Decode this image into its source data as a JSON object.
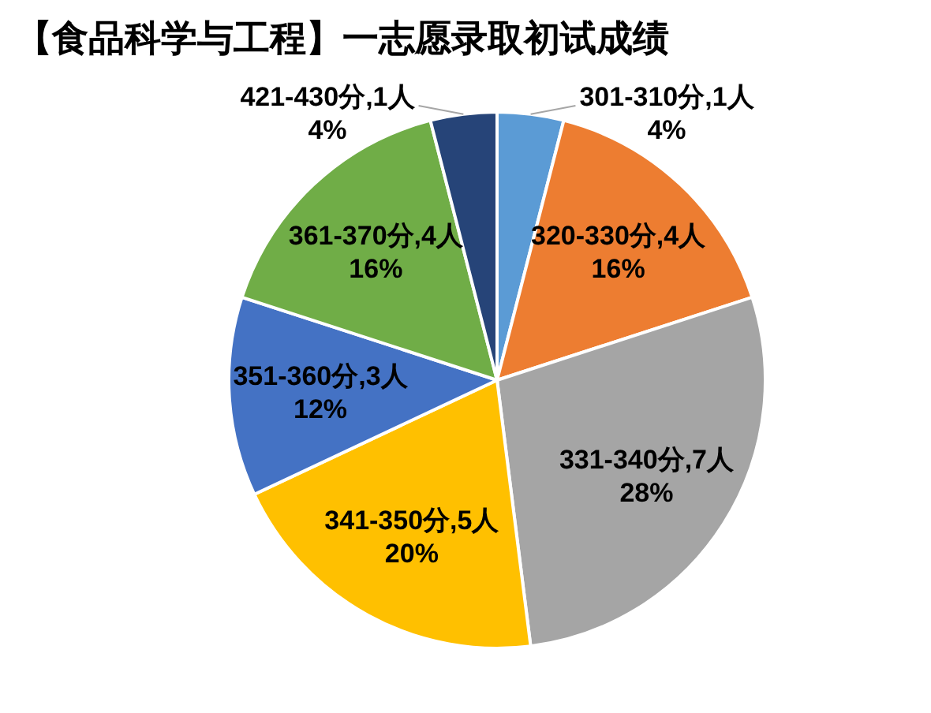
{
  "chart_data": {
    "type": "pie",
    "title": "【食品科学与工程】一志愿录取初试成绩",
    "categories": [
      "301-310分,1人",
      "320-330分,4人",
      "331-340分,7人",
      "341-350分,5人",
      "351-360分,3人",
      "361-370分,4人",
      "421-430分,1人"
    ],
    "values": [
      4,
      16,
      28,
      20,
      12,
      16,
      4
    ],
    "value_labels": [
      "4%",
      "16%",
      "28%",
      "20%",
      "12%",
      "16%",
      "4%"
    ],
    "colors": [
      "#5b9bd5",
      "#ed7d31",
      "#a5a5a5",
      "#ffc000",
      "#4472c4",
      "#70ad47",
      "#264478"
    ],
    "legend": false
  }
}
